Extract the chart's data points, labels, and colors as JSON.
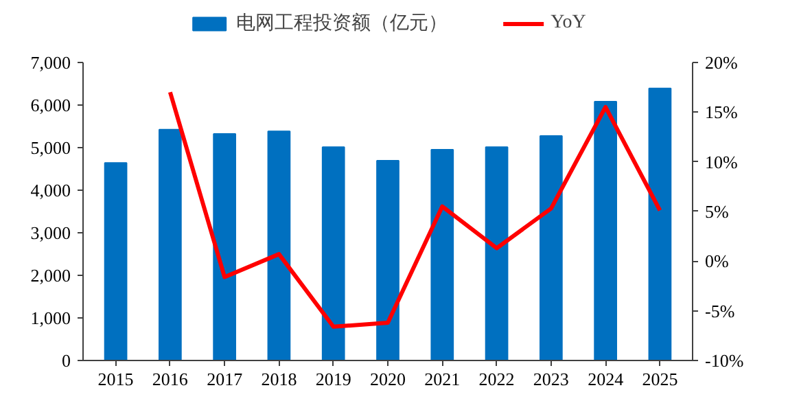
{
  "chart_data": {
    "type": "bar",
    "categories": [
      "2015",
      "2016",
      "2017",
      "2018",
      "2019",
      "2020",
      "2021",
      "2022",
      "2023",
      "2024",
      "2025"
    ],
    "series": [
      {
        "name": "电网工程投资额（亿元）",
        "color": "#0070c0",
        "values": [
          4640,
          5420,
          5320,
          5380,
          5010,
          4690,
          4950,
          5010,
          5270,
          6080,
          6390
        ]
      },
      {
        "name": "YoY",
        "type": "line",
        "axis": "y2",
        "color": "#ff0000",
        "values": [
          null,
          17.0,
          -1.6,
          0.7,
          -6.6,
          -6.2,
          5.5,
          1.3,
          5.3,
          15.5,
          5.1
        ]
      }
    ],
    "ylim": [
      0,
      7000
    ],
    "yticks": [
      {
        "value": 0,
        "label": "0"
      },
      {
        "value": 1000,
        "label": "1,000"
      },
      {
        "value": 2000,
        "label": "2,000"
      },
      {
        "value": 3000,
        "label": "3,000"
      },
      {
        "value": 4000,
        "label": "4,000"
      },
      {
        "value": 5000,
        "label": "5,000"
      },
      {
        "value": 6000,
        "label": "6,000"
      },
      {
        "value": 7000,
        "label": "7,000"
      }
    ],
    "y2lim": [
      -10,
      20
    ],
    "y2ticks": [
      {
        "value": -10,
        "label": "-10%"
      },
      {
        "value": -5,
        "label": "-5%"
      },
      {
        "value": 0,
        "label": "0%"
      },
      {
        "value": 5,
        "label": "5%"
      },
      {
        "value": 10,
        "label": "10%"
      },
      {
        "value": 15,
        "label": "15%"
      },
      {
        "value": 20,
        "label": "20%"
      }
    ],
    "grid": false,
    "legend": "top"
  }
}
